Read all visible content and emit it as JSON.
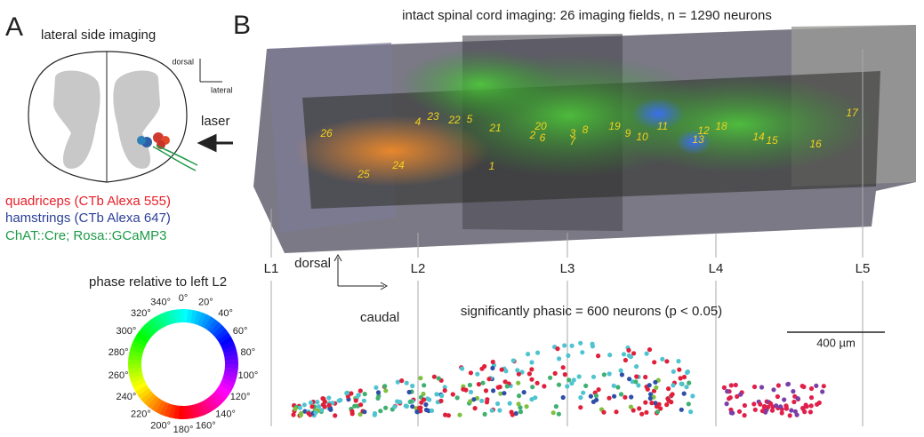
{
  "panel_a": {
    "label": "A",
    "title": "lateral side imaging",
    "axis_dorsal": "dorsal",
    "axis_lateral": "lateral",
    "laser": "laser",
    "legend": [
      "quadriceps (CTb Alexa 555)",
      "hamstrings (CTb Alexa 647)",
      "ChAT::Cre; Rosa::GCaMP3"
    ],
    "wheel_title": "phase relative to left L2",
    "wheel_labels": [
      "0°",
      "20°",
      "40°",
      "60°",
      "80°",
      "100°",
      "120°",
      "140°",
      "160°",
      "180°",
      "200°",
      "220°",
      "240°",
      "260°",
      "280°",
      "300°",
      "320°",
      "340°"
    ]
  },
  "panel_b": {
    "label": "B",
    "title": "intact spinal cord imaging: 26 imaging fields, n = 1290 neurons",
    "fields": [
      "1",
      "2",
      "3",
      "4",
      "5",
      "6",
      "7",
      "8",
      "9",
      "10",
      "11",
      "12",
      "13",
      "14",
      "15",
      "16",
      "17",
      "18",
      "19",
      "20",
      "21",
      "22",
      "23",
      "24",
      "25",
      "26"
    ],
    "segments": [
      "L1",
      "L2",
      "L3",
      "L4",
      "L5"
    ],
    "axis_dorsal": "dorsal",
    "axis_caudal": "caudal",
    "scatter_title": "significantly phasic = 600 neurons (p < 0.05)",
    "scale_bar": "400 µm"
  }
}
